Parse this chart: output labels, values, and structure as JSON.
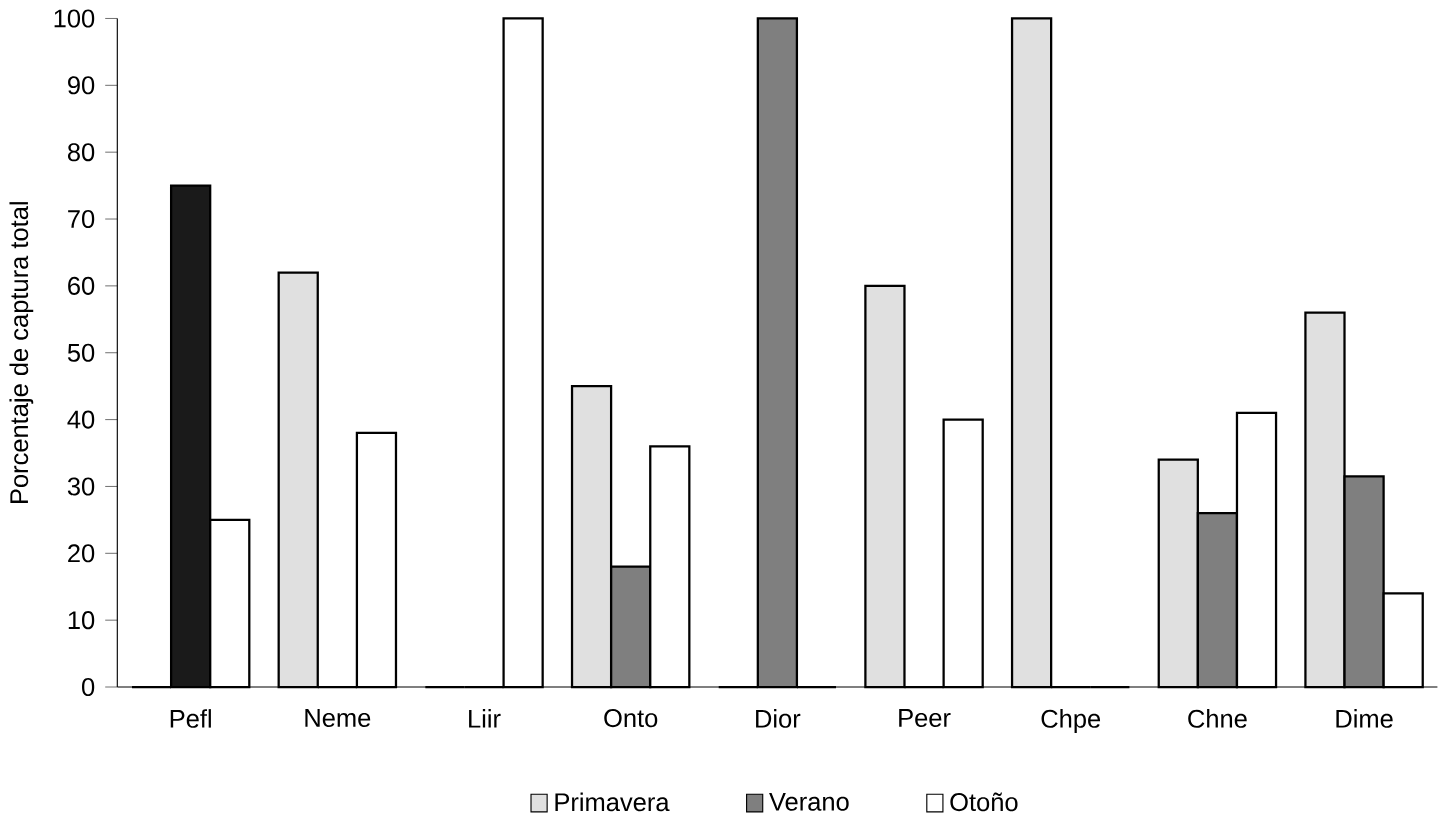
{
  "chart_data": {
    "type": "bar",
    "ylabel": "Porcentaje de captura total",
    "categories": [
      "Pefl",
      "Neme",
      "Liir",
      "Onto",
      "Dior",
      "Peer",
      "Chpe",
      "Chne",
      "Dime"
    ],
    "series": [
      {
        "name": "Primavera",
        "color": "#e0e0e0",
        "values": [
          0,
          62,
          0,
          45,
          0,
          60,
          100,
          34,
          56
        ]
      },
      {
        "name": "Verano",
        "color": "#7f7f7f",
        "colors": [
          "#1a1a1a",
          "#7f7f7f",
          "#7f7f7f",
          "#7f7f7f",
          "#7f7f7f",
          "#7f7f7f",
          "#7f7f7f",
          "#7f7f7f",
          "#7f7f7f"
        ],
        "values": [
          75,
          0,
          0,
          18,
          100,
          0,
          0,
          26,
          31.5
        ]
      },
      {
        "name": "Otoño",
        "color": "#ffffff",
        "values": [
          25,
          38,
          100,
          36,
          0,
          40,
          0,
          41,
          14
        ]
      }
    ],
    "ylim": [
      0,
      100
    ],
    "yticks": [
      0,
      10,
      20,
      30,
      40,
      50,
      60,
      70,
      80,
      90,
      100
    ],
    "grid": false,
    "legend": "bottom"
  }
}
